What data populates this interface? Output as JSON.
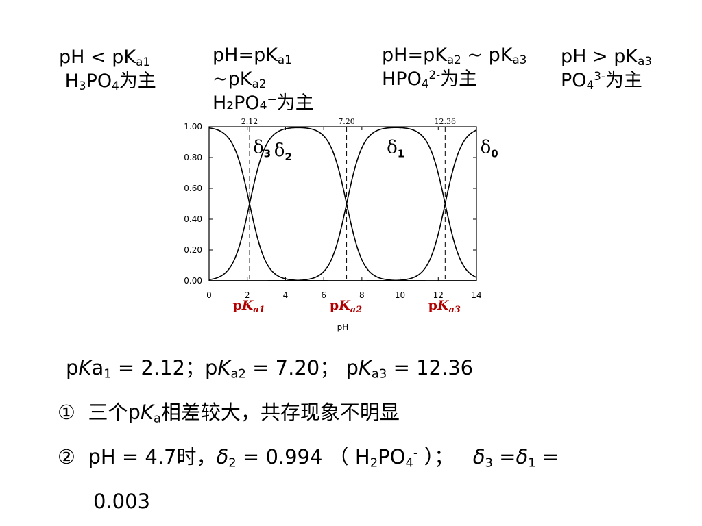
{
  "regions": [
    {
      "line1": [
        "pH < pK",
        "a1",
        ""
      ],
      "line2": [
        "H",
        "3",
        "PO",
        "4",
        "为主"
      ]
    },
    {
      "line1": [
        "pH=pK",
        "a1",
        ""
      ],
      "line2": [
        "~pK",
        "a2",
        ""
      ],
      "line3": "H₂PO₄⁻为主"
    },
    {
      "line1": [
        "pH=pK",
        "a2",
        " ~ pK",
        "a3"
      ],
      "line2": [
        "HPO",
        "4",
        "2-",
        "为主"
      ]
    },
    {
      "line1": [
        "pH > pK",
        "a3",
        ""
      ],
      "line2": [
        "PO",
        "4",
        "3-",
        "为主"
      ]
    }
  ],
  "chart_data": {
    "type": "line",
    "xlabel": "pH",
    "xlim": [
      0,
      14
    ],
    "ylim": [
      0,
      1
    ],
    "x_ticks": [
      "0",
      "2",
      "4",
      "6",
      "8",
      "10",
      "12",
      "14"
    ],
    "y_ticks": [
      "0.00",
      "0.20",
      "0.40",
      "0.60",
      "0.80",
      "1.00"
    ],
    "pKa": [
      2.12,
      7.2,
      12.36
    ],
    "pKa_top_labels": [
      "2.12",
      "7.20",
      "12.36"
    ],
    "pKa_axis_labels": [
      [
        "p",
        "K",
        "a1"
      ],
      [
        "p",
        "K",
        "a2"
      ],
      [
        "p",
        "K",
        "a3"
      ]
    ],
    "series": [
      {
        "symbol": "δ",
        "sub": "3",
        "label_x": 2.3,
        "label_y": 0.83
      },
      {
        "symbol": "δ",
        "sub": "2",
        "label_x": 3.4,
        "label_y": 0.81
      },
      {
        "symbol": "δ",
        "sub": "1",
        "label_x": 9.3,
        "label_y": 0.83
      },
      {
        "symbol": "δ",
        "sub": "0",
        "label_x": 14.2,
        "label_y": 0.83
      }
    ],
    "sample_step": 0.05,
    "grid": false,
    "legend": "none",
    "line_color": "#000000",
    "annotation_color": "#b00000"
  },
  "summary": {
    "pka_line": {
      "a1": "2.12",
      "a2": "7.20",
      "a3": "12.36"
    },
    "point1": {
      "num": "①",
      "pre": "三个p",
      "k": "K",
      "sub": "a",
      "post": "相差较大，共存现象不明显"
    },
    "point2": {
      "num": "②",
      "ph": "pH = 4.7时，",
      "d2": "δ",
      "d2sub": "2",
      "d2val": " = 0.994 （ H",
      "h2sub": "2",
      "po": "PO",
      "po4sub": "4",
      "minus": "-",
      "close": " ）；",
      "d3": "δ",
      "d3sub": "3",
      "eq": " =",
      "d1": "δ",
      "d1sub": "1",
      "eq2": " =",
      "val": "0.003"
    }
  }
}
